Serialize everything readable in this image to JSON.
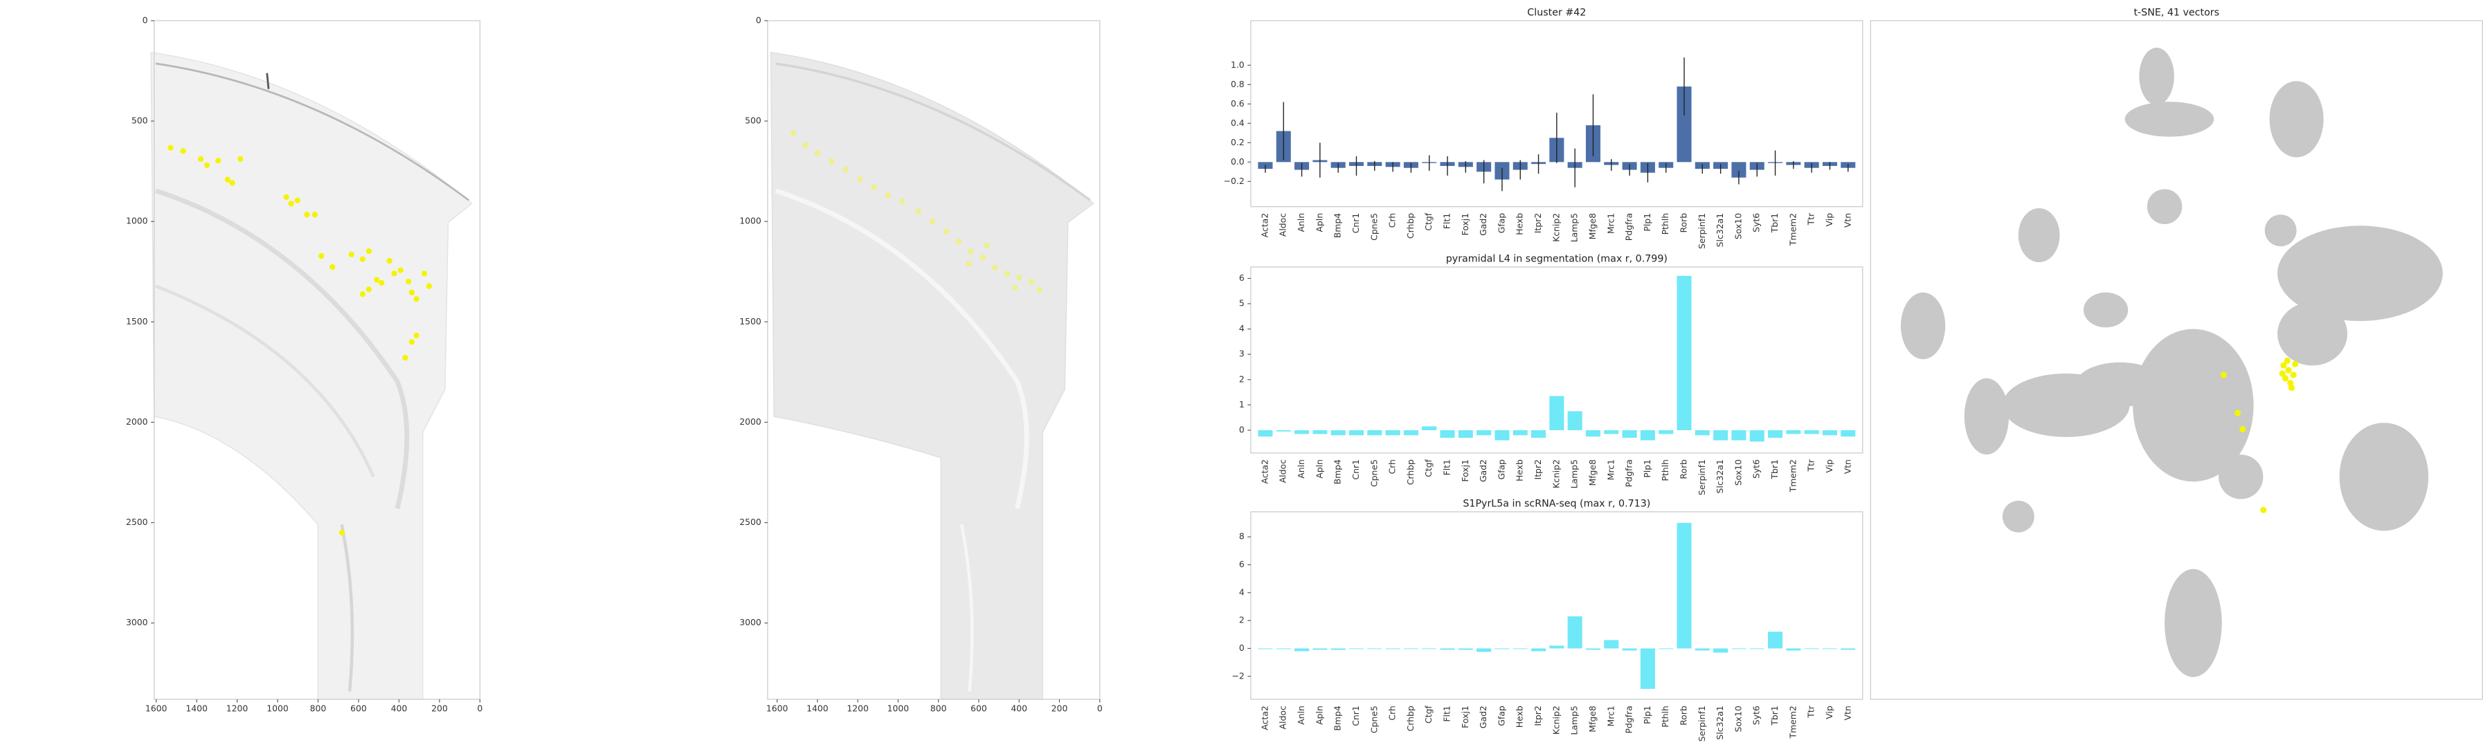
{
  "chart_data": [
    {
      "type": "scatter",
      "xlim": [
        1610,
        0
      ],
      "ylim": [
        3380,
        0
      ],
      "xticks": [
        1600,
        1400,
        1200,
        1000,
        800,
        600,
        400,
        200,
        0
      ],
      "yticks": [
        0,
        500,
        1000,
        1500,
        2000,
        2500,
        3000
      ],
      "series": [
        {
          "color": "#f4f400",
          "x": [
            1529,
            1467,
            1380,
            1349,
            1294,
            1247,
            1224,
            1184,
            957,
            933,
            902,
            855,
            816,
            784,
            729,
            635,
            580,
            549,
            510,
            486,
            447,
            424,
            392,
            353,
            337,
            314,
            275,
            251,
            580,
            549,
            314,
            337,
            369,
            682
          ],
          "values": [
            633,
            649,
            689,
            720,
            697,
            792,
            808,
            689,
            879,
            911,
            895,
            966,
            966,
            1172,
            1227,
            1164,
            1188,
            1148,
            1291,
            1306,
            1196,
            1259,
            1243,
            1299,
            1354,
            1386,
            1259,
            1322,
            1362,
            1338,
            1568,
            1600,
            1679,
            2550
          ]
        }
      ]
    },
    {
      "type": "scatter",
      "xlim": [
        1647,
        0
      ],
      "ylim": [
        3380,
        0
      ],
      "xticks": [
        1600,
        1400,
        1200,
        1000,
        800,
        600,
        400,
        200,
        0
      ],
      "yticks": [
        0,
        500,
        1000,
        1500,
        2000,
        2500,
        3000
      ],
      "series": [
        {
          "color": "#eef08a",
          "x": [
            1520,
            1460,
            1400,
            1330,
            1260,
            1190,
            1120,
            1050,
            980,
            900,
            830,
            760,
            700,
            640,
            580,
            520,
            460,
            400,
            340,
            300,
            420,
            560,
            650
          ],
          "values": [
            560,
            620,
            660,
            700,
            740,
            790,
            830,
            870,
            900,
            950,
            1000,
            1050,
            1100,
            1150,
            1180,
            1230,
            1260,
            1280,
            1300,
            1340,
            1330,
            1120,
            1210
          ]
        }
      ]
    },
    {
      "type": "bar",
      "title": "Cluster #42",
      "categories": [
        "Acta2",
        "Aldoc",
        "Anln",
        "Apln",
        "Bmp4",
        "Cnr1",
        "Cpne5",
        "Crh",
        "Crhbp",
        "Ctgf",
        "Flt1",
        "Foxj1",
        "Gad2",
        "Gfap",
        "Hexb",
        "Itpr2",
        "Kcnip2",
        "Lamp5",
        "Mfge8",
        "Mrc1",
        "Pdgfra",
        "Plp1",
        "Pthlh",
        "Rorb",
        "Serpinf1",
        "Slc32a1",
        "Sox10",
        "Syt6",
        "Tbr1",
        "Tmem2",
        "Ttr",
        "Vip",
        "Vtn"
      ],
      "values": [
        -0.07,
        0.32,
        -0.08,
        0.02,
        -0.06,
        -0.04,
        -0.04,
        -0.05,
        -0.06,
        -0.01,
        -0.04,
        -0.05,
        -0.1,
        -0.18,
        -0.08,
        -0.02,
        0.25,
        -0.06,
        0.38,
        -0.03,
        -0.08,
        -0.11,
        -0.06,
        0.78,
        -0.07,
        -0.07,
        -0.16,
        -0.08,
        -0.01,
        -0.03,
        -0.06,
        -0.04,
        -0.06
      ],
      "errors": [
        0.04,
        0.3,
        0.07,
        0.18,
        0.05,
        0.1,
        0.05,
        0.05,
        0.05,
        0.08,
        0.1,
        0.06,
        0.12,
        0.12,
        0.1,
        0.1,
        0.26,
        0.2,
        0.32,
        0.06,
        0.06,
        0.1,
        0.05,
        0.3,
        0.05,
        0.05,
        0.07,
        0.07,
        0.13,
        0.04,
        0.05,
        0.04,
        0.04
      ],
      "color": "#4c6fa8",
      "ylim": [
        -0.46,
        1.46
      ],
      "yticks": [
        {
          "value": -0.2,
          "label": "−0.2"
        },
        {
          "value": 0,
          "label": "0.0"
        },
        0.2,
        0.4,
        0.6,
        0.8,
        {
          "value": 1,
          "label": "1.0"
        }
      ]
    },
    {
      "type": "bar",
      "title": "pyramidal L4 in segmentation (max r, 0.799)",
      "categories": [
        "Acta2",
        "Aldoc",
        "Anln",
        "Apln",
        "Bmp4",
        "Cnr1",
        "Cpne5",
        "Crh",
        "Crhbp",
        "Ctgf",
        "Flt1",
        "Foxj1",
        "Gad2",
        "Gfap",
        "Hexb",
        "Itpr2",
        "Kcnip2",
        "Lamp5",
        "Mfge8",
        "Mrc1",
        "Pdgfra",
        "Plp1",
        "Pthlh",
        "Rorb",
        "Serpinf1",
        "Slc32a1",
        "Sox10",
        "Syt6",
        "Tbr1",
        "Tmem2",
        "Ttr",
        "Vip",
        "Vtn"
      ],
      "values": [
        -0.25,
        -0.05,
        -0.15,
        -0.15,
        -0.2,
        -0.2,
        -0.2,
        -0.2,
        -0.2,
        0.15,
        -0.3,
        -0.3,
        -0.2,
        -0.4,
        -0.2,
        -0.3,
        1.35,
        0.75,
        -0.25,
        -0.15,
        -0.3,
        -0.4,
        -0.15,
        6.1,
        -0.2,
        -0.4,
        -0.4,
        -0.45,
        -0.3,
        -0.15,
        -0.15,
        -0.2,
        -0.25
      ],
      "color": "#6fe8f8",
      "ylim": [
        -0.9,
        6.45
      ],
      "yticks": [
        0,
        1,
        2,
        3,
        4,
        5,
        6
      ]
    },
    {
      "type": "bar",
      "title": "S1PyrL5a in scRNA-seq (max r, 0.713)",
      "categories": [
        "Acta2",
        "Aldoc",
        "Anln",
        "Apln",
        "Bmp4",
        "Cnr1",
        "Cpne5",
        "Crh",
        "Crhbp",
        "Ctgf",
        "Flt1",
        "Foxj1",
        "Gad2",
        "Gfap",
        "Hexb",
        "Itpr2",
        "Kcnip2",
        "Lamp5",
        "Mfge8",
        "Mrc1",
        "Pdgfra",
        "Plp1",
        "Pthlh",
        "Rorb",
        "Serpinf1",
        "Slc32a1",
        "Sox10",
        "Syt6",
        "Tbr1",
        "Tmem2",
        "Ttr",
        "Vip",
        "Vtn"
      ],
      "values": [
        -0.05,
        -0.05,
        -0.2,
        -0.1,
        -0.1,
        0,
        0,
        -0.05,
        0,
        0,
        -0.1,
        -0.1,
        -0.25,
        -0.05,
        0,
        -0.2,
        0.2,
        2.3,
        -0.1,
        0.6,
        -0.15,
        -2.9,
        0,
        9.0,
        -0.15,
        -0.3,
        0,
        0,
        1.2,
        -0.15,
        0,
        0,
        -0.1
      ],
      "color": "#6fe8f8",
      "ylim": [
        -3.65,
        9.8
      ],
      "yticks": [
        {
          "value": -2,
          "label": "−2"
        },
        0,
        2,
        4,
        6,
        8
      ]
    },
    {
      "type": "scatter",
      "title": "t-SNE, 41 vectors",
      "xlim": [
        0,
        100
      ],
      "ylim": [
        0,
        100
      ],
      "series": [
        {
          "color": "#f4f400",
          "x": [
            67.5,
            68.3,
            69.1,
            67.8,
            68.6,
            67.3,
            69.4,
            68.1,
            68.8,
            57.7,
            60.0,
            60.8,
            64.2
          ],
          "values": [
            49.2,
            48.5,
            47.8,
            47.3,
            46.6,
            48.0,
            49.4,
            49.9,
            45.9,
            47.8,
            42.2,
            39.8,
            27.9
          ]
        }
      ]
    }
  ]
}
